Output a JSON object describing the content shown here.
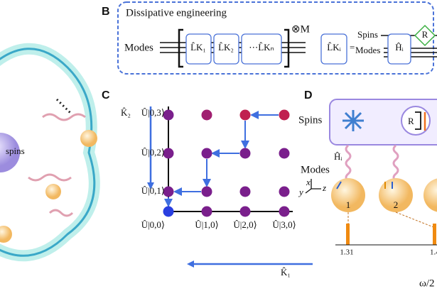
{
  "left_panel": {
    "label": "spins"
  },
  "panel_b": {
    "letter": "B",
    "title": "Dissipative engineering",
    "modes": "Modes",
    "tensor": "⊗M",
    "operators": [
      "L̂K₁",
      "L̂K₂",
      "⋯L̂Kₙ"
    ],
    "lhs": "L̂Kᵢ",
    "equals": "=",
    "spins": "Spins",
    "modes_right": "Modes",
    "hamiltonian": "Ĥᵢ",
    "reset": "R"
  },
  "panel_c": {
    "letter": "C",
    "axis_k2": "K̂₂",
    "axis_k1": "K̂₁",
    "states_vertical": [
      "Û|0,3⟩",
      "Û|0,2⟩",
      "Û|0,1⟩",
      "Û|0,0⟩"
    ],
    "states_horizontal": [
      "Û|1,0⟩",
      "Û|2,0⟩",
      "Û|3,0⟩"
    ]
  },
  "panel_d": {
    "letter": "D",
    "spins": "Spins",
    "reset": "R",
    "hamiltonian": "Ĥᵢ",
    "modes": "Modes",
    "axes": [
      "x",
      "y",
      "z"
    ],
    "mode_numbers": [
      "1",
      "2"
    ],
    "freq_ticks": [
      "1.31",
      "1.4"
    ],
    "freq_label": "ω/2"
  }
}
